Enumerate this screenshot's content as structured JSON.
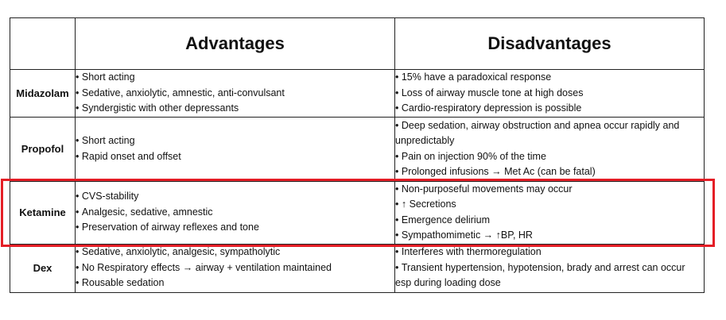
{
  "headers": {
    "advantages": "Advantages",
    "disadvantages": "Disadvantages"
  },
  "rows": [
    {
      "drug": "Midazolam",
      "advantages": [
        "Short acting",
        "Sedative, anxiolytic, amnestic, anti-convulsant",
        "Syndergistic with other depressants"
      ],
      "disadvantages": [
        "15% have a paradoxical response",
        "Loss of airway muscle tone at high doses",
        "Cardio-respiratory depression is possible"
      ]
    },
    {
      "drug": "Propofol",
      "advantages": [
        "Short acting",
        "Rapid onset and offset"
      ],
      "disadvantages": [
        "Deep sedation, airway obstruction and apnea occur rapidly and unpredictably",
        "Pain on injection 90% of the time",
        "Prolonged infusions → Met Ac (can be fatal)"
      ]
    },
    {
      "drug": "Ketamine",
      "advantages": [
        "CVS-stability",
        "Analgesic, sedative, amnestic",
        "Preservation of airway reflexes and tone"
      ],
      "disadvantages": [
        "Non-purposeful movements may occur",
        "↑ Secretions",
        "Emergence delirium",
        "Sympathomimetic → ↑BP, HR"
      ]
    },
    {
      "drug": "Dex",
      "advantages": [
        "Sedative, anxiolytic, analgesic, sympatholytic",
        "No Respiratory effects → airway + ventilation maintained",
        "Rousable sedation"
      ],
      "disadvantages": [
        "Interferes with thermoregulation",
        "Transient hypertension, hypotension, brady and arrest can occur esp during loading dose"
      ]
    }
  ],
  "highlight": {
    "row": "Ketamine",
    "color": "#e41e26"
  }
}
